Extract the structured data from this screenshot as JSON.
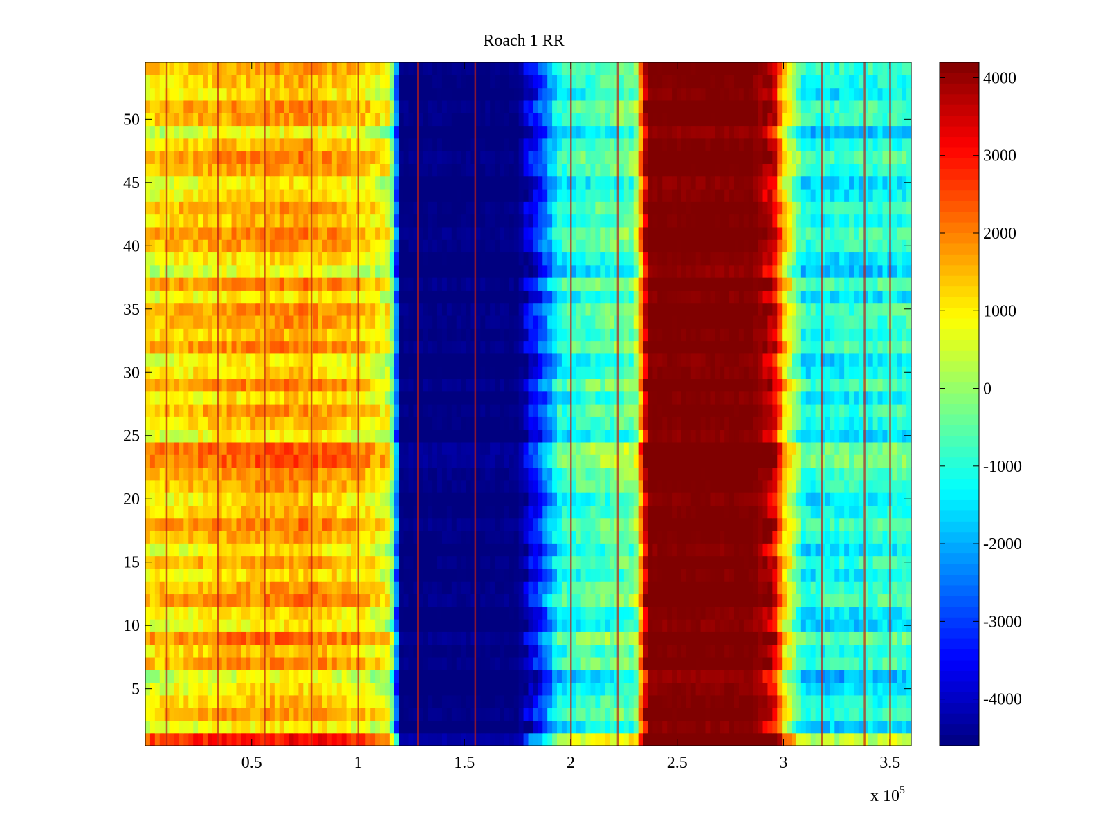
{
  "chart_data": {
    "type": "heatmap",
    "title": "Roach 1 RR",
    "xlabel": "",
    "ylabel": "",
    "x_multiplier_label": "x 10",
    "x_multiplier_exponent": "5",
    "xlim": [
      0,
      3.6
    ],
    "ylim": [
      0.5,
      54.5
    ],
    "x_ticks": [
      0.5,
      1,
      1.5,
      2,
      2.5,
      3,
      3.5
    ],
    "x_tick_labels": [
      "0.5",
      "1",
      "1.5",
      "2",
      "2.5",
      "3",
      "3.5"
    ],
    "y_ticks": [
      5,
      10,
      15,
      20,
      25,
      30,
      35,
      40,
      45,
      50
    ],
    "y_tick_labels": [
      "5",
      "10",
      "15",
      "20",
      "25",
      "30",
      "35",
      "40",
      "45",
      "50"
    ],
    "colormap": "jet",
    "clim": [
      -4600,
      4200
    ],
    "colorbar_ticks": [
      4000,
      3000,
      2000,
      1000,
      0,
      -1000,
      -2000,
      -3000,
      -4000
    ],
    "colorbar_tick_labels": [
      "4000",
      "3000",
      "2000",
      "1000",
      "0",
      "-1000",
      "-2000",
      "-3000",
      "-4000"
    ],
    "n_rows": 54,
    "column_profile_x": [
      0,
      0.3,
      0.55,
      0.75,
      1.0,
      1.15,
      1.2,
      1.25,
      1.5,
      1.75,
      1.85,
      1.95,
      2.1,
      2.3,
      2.36,
      2.45,
      2.85,
      2.95,
      3.0,
      3.1,
      3.3,
      3.6
    ],
    "column_profile_value": [
      1000,
      1300,
      1500,
      1600,
      1200,
      600,
      -4600,
      -4600,
      -4600,
      -4600,
      -3200,
      -1200,
      -800,
      -500,
      4200,
      4200,
      4200,
      3600,
      1200,
      -1300,
      -1200,
      -1000
    ],
    "row_offsets": [
      1500,
      -500,
      300,
      0,
      -400,
      -800,
      400,
      0,
      700,
      -500,
      -300,
      500,
      300,
      -200,
      300,
      -400,
      200,
      500,
      0,
      -300,
      300,
      400,
      900,
      900,
      -500,
      0,
      300,
      -300,
      500,
      -200,
      -400,
      500,
      0,
      300,
      400,
      -400,
      500,
      -700,
      -300,
      300,
      500,
      0,
      300,
      -300,
      -500,
      300,
      500,
      0,
      -700,
      300,
      400,
      -300,
      0,
      300
    ],
    "vertical_streaks_x": [
      0.1,
      0.34,
      0.56,
      0.78,
      1.0,
      1.28,
      1.55,
      2.0,
      2.22,
      3.18,
      3.38,
      3.5
    ]
  }
}
